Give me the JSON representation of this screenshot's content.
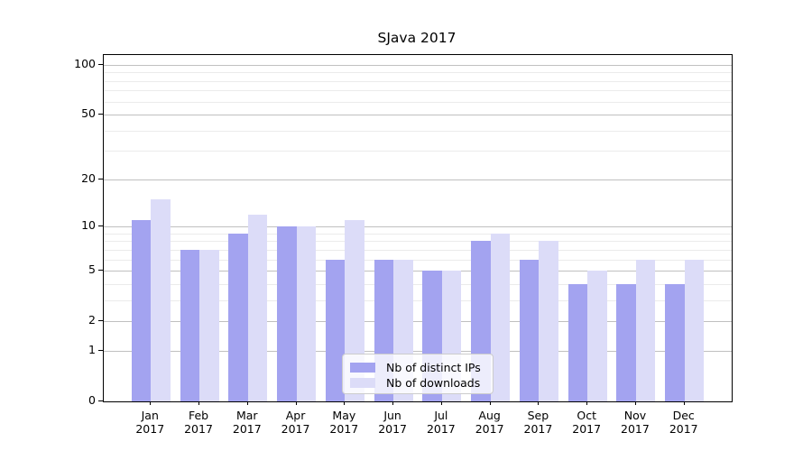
{
  "chart_data": {
    "type": "bar",
    "title": "SJava 2017",
    "categories": [
      "Jan",
      "Feb",
      "Mar",
      "Apr",
      "May",
      "Jun",
      "Jul",
      "Aug",
      "Sep",
      "Oct",
      "Nov",
      "Dec"
    ],
    "category_year": "2017",
    "series": [
      {
        "name": "Nb of distinct IPs",
        "color": "#a3a3f0",
        "values": [
          11,
          7,
          9,
          10,
          6,
          6,
          5,
          8,
          6,
          4,
          4,
          4
        ]
      },
      {
        "name": "Nb of downloads",
        "color": "#dcdcf8",
        "values": [
          15,
          7,
          12,
          10,
          11,
          6,
          5,
          9,
          8,
          5,
          6,
          6
        ]
      }
    ],
    "xlabel": "",
    "ylabel": "",
    "yscale": "log10(value+1)",
    "ylim": [
      0,
      100
    ],
    "yticks_major": [
      0,
      1,
      2,
      5,
      10,
      20,
      50,
      100
    ],
    "yticks_minor": [
      3,
      4,
      6,
      7,
      8,
      9,
      30,
      40,
      60,
      70,
      80,
      90
    ],
    "grid": true,
    "legend_position": "lower-center-inside"
  }
}
